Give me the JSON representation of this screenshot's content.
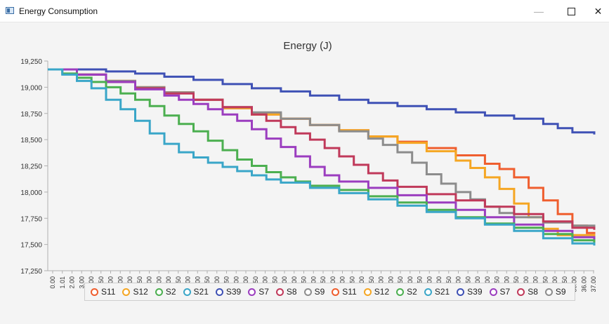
{
  "window": {
    "title": "Energy Consumption"
  },
  "icons": {
    "app": "app-window-icon",
    "minimize": "minimize-icon",
    "maximize": "maximize-icon",
    "close": "close-icon"
  },
  "chart_data": {
    "type": "line",
    "title": "Energy (J)",
    "xlabel": "",
    "ylabel": "",
    "ylim": [
      17250,
      19250
    ],
    "xlim": [
      0,
      37.5
    ],
    "yticks": [
      17250,
      17500,
      17750,
      18000,
      18250,
      18500,
      18750,
      19000,
      19250
    ],
    "ytick_labels": [
      "17,250",
      "17,500",
      "17,750",
      "18,000",
      "18,250",
      "18,500",
      "18,750",
      "19,000",
      "19,250"
    ],
    "xtick_labels": [
      "0.00",
      "1.01",
      "2.00",
      "3.00",
      "4.00",
      "4.50",
      "5.00",
      "6.00",
      "7.00",
      "7.50",
      "8.00",
      "9.00",
      "10.00",
      "10.50",
      "11.00",
      "12.00",
      "12.50",
      "13.00",
      "13.50",
      "14.00",
      "15.00",
      "15.50",
      "16.00",
      "16.50",
      "17.00",
      "18.00",
      "18.50",
      "19.00",
      "19.50",
      "20.00",
      "21.00",
      "21.50",
      "22.00",
      "22.50",
      "23.00",
      "24.00",
      "24.50",
      "25.00",
      "25.50",
      "26.00",
      "27.00",
      "27.50",
      "28.00",
      "28.50",
      "29.00",
      "30.00",
      "30.50",
      "31.00",
      "31.50",
      "32.00",
      "33.00",
      "33.50",
      "34.00",
      "34.50",
      "35.00",
      "36.00",
      "37.00"
    ],
    "grid": false,
    "legend_position": "bottom",
    "legend": [
      "S11",
      "S12",
      "S2",
      "S21",
      "S39",
      "S7",
      "S8",
      "S9",
      "S11",
      "S12",
      "S2",
      "S21",
      "S39",
      "S7",
      "S8",
      "S9"
    ],
    "series": [
      {
        "name": "S39",
        "color": "#3f51b5",
        "points": [
          [
            0,
            19170
          ],
          [
            4,
            19150
          ],
          [
            6,
            19130
          ],
          [
            8,
            19100
          ],
          [
            10,
            19070
          ],
          [
            12,
            19030
          ],
          [
            14,
            18990
          ],
          [
            16,
            18960
          ],
          [
            18,
            18920
          ],
          [
            20,
            18880
          ],
          [
            22,
            18850
          ],
          [
            24,
            18820
          ],
          [
            26,
            18790
          ],
          [
            28,
            18760
          ],
          [
            30,
            18730
          ],
          [
            32,
            18700
          ],
          [
            34,
            18650
          ],
          [
            35,
            18610
          ],
          [
            36,
            18570
          ],
          [
            37.5,
            18550
          ]
        ]
      },
      {
        "name": "S11",
        "color": "#ef5e2e",
        "points": [
          [
            0,
            19170
          ],
          [
            2,
            19120
          ],
          [
            4,
            19060
          ],
          [
            6,
            19000
          ],
          [
            8,
            18950
          ],
          [
            10,
            18880
          ],
          [
            12,
            18800
          ],
          [
            14,
            18740
          ],
          [
            16,
            18700
          ],
          [
            18,
            18640
          ],
          [
            20,
            18590
          ],
          [
            22,
            18530
          ],
          [
            24,
            18480
          ],
          [
            26,
            18420
          ],
          [
            28,
            18350
          ],
          [
            30,
            18270
          ],
          [
            31,
            18220
          ],
          [
            32,
            18140
          ],
          [
            33,
            18040
          ],
          [
            34,
            17920
          ],
          [
            35,
            17790
          ],
          [
            36,
            17680
          ],
          [
            37,
            17610
          ],
          [
            37.5,
            17600
          ]
        ]
      },
      {
        "name": "S12",
        "color": "#f5a623",
        "points": [
          [
            0,
            19170
          ],
          [
            2,
            19120
          ],
          [
            4,
            19060
          ],
          [
            6,
            19000
          ],
          [
            8,
            18950
          ],
          [
            10,
            18880
          ],
          [
            12,
            18800
          ],
          [
            14,
            18740
          ],
          [
            16,
            18700
          ],
          [
            18,
            18640
          ],
          [
            20,
            18590
          ],
          [
            22,
            18530
          ],
          [
            24,
            18470
          ],
          [
            26,
            18390
          ],
          [
            28,
            18300
          ],
          [
            29,
            18230
          ],
          [
            30,
            18140
          ],
          [
            31,
            18030
          ],
          [
            32,
            17890
          ],
          [
            33,
            17760
          ],
          [
            34,
            17650
          ],
          [
            35,
            17590
          ],
          [
            37.5,
            17560
          ]
        ]
      },
      {
        "name": "S9",
        "color": "#8c8c8c",
        "points": [
          [
            0,
            19170
          ],
          [
            2,
            19120
          ],
          [
            4,
            19060
          ],
          [
            6,
            19000
          ],
          [
            8,
            18950
          ],
          [
            10,
            18880
          ],
          [
            12,
            18810
          ],
          [
            14,
            18760
          ],
          [
            16,
            18700
          ],
          [
            18,
            18640
          ],
          [
            20,
            18580
          ],
          [
            22,
            18510
          ],
          [
            23,
            18450
          ],
          [
            24,
            18380
          ],
          [
            25,
            18280
          ],
          [
            26,
            18170
          ],
          [
            27,
            18080
          ],
          [
            28,
            18000
          ],
          [
            29,
            17930
          ],
          [
            30,
            17860
          ],
          [
            31,
            17800
          ],
          [
            32,
            17760
          ],
          [
            34,
            17710
          ],
          [
            36,
            17680
          ],
          [
            37.5,
            17650
          ]
        ]
      },
      {
        "name": "S8",
        "color": "#c0395a",
        "points": [
          [
            0,
            19170
          ],
          [
            2,
            19120
          ],
          [
            4,
            19050
          ],
          [
            6,
            18990
          ],
          [
            8,
            18940
          ],
          [
            10,
            18880
          ],
          [
            12,
            18810
          ],
          [
            14,
            18740
          ],
          [
            15,
            18680
          ],
          [
            16,
            18620
          ],
          [
            17,
            18560
          ],
          [
            18,
            18500
          ],
          [
            19,
            18420
          ],
          [
            20,
            18340
          ],
          [
            21,
            18260
          ],
          [
            22,
            18180
          ],
          [
            23,
            18110
          ],
          [
            24,
            18050
          ],
          [
            26,
            17980
          ],
          [
            28,
            17920
          ],
          [
            30,
            17860
          ],
          [
            32,
            17790
          ],
          [
            34,
            17720
          ],
          [
            36,
            17660
          ],
          [
            37.5,
            17640
          ]
        ]
      },
      {
        "name": "S7",
        "color": "#9b3dbf",
        "points": [
          [
            0,
            19170
          ],
          [
            2,
            19120
          ],
          [
            4,
            19050
          ],
          [
            6,
            18980
          ],
          [
            8,
            18920
          ],
          [
            9,
            18880
          ],
          [
            10,
            18840
          ],
          [
            11,
            18790
          ],
          [
            12,
            18740
          ],
          [
            13,
            18680
          ],
          [
            14,
            18600
          ],
          [
            15,
            18510
          ],
          [
            16,
            18430
          ],
          [
            17,
            18340
          ],
          [
            18,
            18240
          ],
          [
            19,
            18160
          ],
          [
            20,
            18100
          ],
          [
            22,
            18040
          ],
          [
            24,
            17970
          ],
          [
            26,
            17900
          ],
          [
            28,
            17830
          ],
          [
            30,
            17760
          ],
          [
            32,
            17690
          ],
          [
            34,
            17630
          ],
          [
            36,
            17570
          ],
          [
            37.5,
            17520
          ]
        ]
      },
      {
        "name": "S2",
        "color": "#4caf50",
        "points": [
          [
            0,
            19170
          ],
          [
            1,
            19130
          ],
          [
            2,
            19090
          ],
          [
            3,
            19050
          ],
          [
            4,
            19000
          ],
          [
            5,
            18940
          ],
          [
            6,
            18880
          ],
          [
            7,
            18820
          ],
          [
            8,
            18730
          ],
          [
            9,
            18650
          ],
          [
            10,
            18580
          ],
          [
            11,
            18490
          ],
          [
            12,
            18400
          ],
          [
            13,
            18310
          ],
          [
            14,
            18250
          ],
          [
            15,
            18190
          ],
          [
            16,
            18140
          ],
          [
            17,
            18100
          ],
          [
            18,
            18060
          ],
          [
            20,
            18020
          ],
          [
            22,
            17960
          ],
          [
            24,
            17900
          ],
          [
            26,
            17830
          ],
          [
            28,
            17760
          ],
          [
            30,
            17700
          ],
          [
            32,
            17660
          ],
          [
            34,
            17600
          ],
          [
            36,
            17540
          ],
          [
            37.5,
            17510
          ]
        ]
      },
      {
        "name": "S21",
        "color": "#3aa6c8",
        "points": [
          [
            0,
            19170
          ],
          [
            1,
            19120
          ],
          [
            2,
            19060
          ],
          [
            3,
            18990
          ],
          [
            4,
            18880
          ],
          [
            5,
            18790
          ],
          [
            6,
            18680
          ],
          [
            7,
            18560
          ],
          [
            8,
            18460
          ],
          [
            9,
            18380
          ],
          [
            10,
            18330
          ],
          [
            11,
            18280
          ],
          [
            12,
            18240
          ],
          [
            13,
            18200
          ],
          [
            14,
            18160
          ],
          [
            15,
            18120
          ],
          [
            16,
            18090
          ],
          [
            18,
            18040
          ],
          [
            20,
            17990
          ],
          [
            22,
            17930
          ],
          [
            24,
            17870
          ],
          [
            26,
            17810
          ],
          [
            28,
            17750
          ],
          [
            30,
            17690
          ],
          [
            32,
            17630
          ],
          [
            34,
            17560
          ],
          [
            36,
            17510
          ],
          [
            37.5,
            17490
          ]
        ]
      }
    ]
  }
}
